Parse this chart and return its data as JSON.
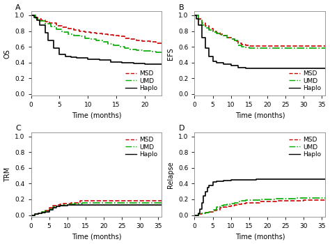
{
  "panel_A": {
    "title": "A",
    "ylabel": "OS",
    "xlabel": "Time (months)",
    "xlim": [
      0,
      23
    ],
    "ylim": [
      -0.02,
      1.05
    ],
    "xticks": [
      0,
      5,
      10,
      15,
      20
    ],
    "yticks": [
      0.0,
      0.2,
      0.4,
      0.6,
      0.8,
      1.0
    ],
    "legend_loc": "lower right",
    "legend_bbox": null,
    "MSD": {
      "x": [
        0,
        0.3,
        0.8,
        1.2,
        1.8,
        2.5,
        3.2,
        4.5,
        5.5,
        6.5,
        7.5,
        8.5,
        9.5,
        10.5,
        11.5,
        12.5,
        13.5,
        14.5,
        15.5,
        16.5,
        17.5,
        18.5,
        19.5,
        21,
        22,
        23
      ],
      "y": [
        1.0,
        1.0,
        0.97,
        0.96,
        0.94,
        0.92,
        0.9,
        0.87,
        0.85,
        0.83,
        0.81,
        0.8,
        0.79,
        0.78,
        0.77,
        0.76,
        0.75,
        0.74,
        0.73,
        0.71,
        0.7,
        0.68,
        0.67,
        0.66,
        0.65,
        0.65
      ],
      "color": "#cc0000",
      "linestyle": "dashed",
      "linewidth": 1.2
    },
    "UMD": {
      "x": [
        0,
        0.3,
        0.8,
        1.5,
        2.5,
        3.5,
        4.5,
        5.5,
        6.5,
        7.5,
        8.5,
        9.5,
        10.5,
        11.5,
        12.5,
        13.5,
        14.5,
        15.5,
        16.5,
        17.5,
        18.5,
        19.5,
        21,
        22,
        23
      ],
      "y": [
        1.0,
        1.0,
        0.96,
        0.93,
        0.89,
        0.86,
        0.82,
        0.79,
        0.76,
        0.74,
        0.73,
        0.71,
        0.7,
        0.68,
        0.66,
        0.64,
        0.62,
        0.6,
        0.58,
        0.57,
        0.56,
        0.55,
        0.54,
        0.53,
        0.53
      ],
      "color": "#00aa00",
      "linestyle": "dashdot",
      "linewidth": 1.2
    },
    "Haplo": {
      "x": [
        0,
        0.5,
        1.0,
        1.5,
        2.5,
        3.0,
        4.0,
        5.0,
        6.0,
        7.0,
        8.0,
        10.0,
        12.0,
        14.0,
        16.0,
        18.0,
        20.0,
        22.0,
        23.0
      ],
      "y": [
        1.0,
        0.97,
        0.94,
        0.88,
        0.78,
        0.68,
        0.58,
        0.5,
        0.48,
        0.47,
        0.46,
        0.44,
        0.43,
        0.41,
        0.4,
        0.39,
        0.38,
        0.38,
        0.38
      ],
      "color": "#000000",
      "linestyle": "solid",
      "linewidth": 1.2
    }
  },
  "panel_B": {
    "title": "B",
    "ylabel": "EFS",
    "xlabel": "Time (months)",
    "xlim": [
      0,
      36
    ],
    "ylim": [
      -0.02,
      1.05
    ],
    "xticks": [
      0,
      5,
      10,
      15,
      20,
      25,
      30,
      35
    ],
    "yticks": [
      0.0,
      0.2,
      0.4,
      0.6,
      0.8,
      1.0
    ],
    "legend_loc": "lower right",
    "legend_bbox": null,
    "MSD": {
      "x": [
        0,
        0.5,
        1.0,
        2.0,
        3.0,
        4.0,
        5.0,
        6.0,
        7.0,
        8.0,
        9.0,
        10.0,
        11.0,
        12.0,
        13.0,
        14.0,
        15.0,
        17.0,
        20.0,
        25.0,
        30.0,
        36.0
      ],
      "y": [
        1.0,
        1.0,
        0.96,
        0.9,
        0.87,
        0.83,
        0.8,
        0.78,
        0.76,
        0.74,
        0.72,
        0.7,
        0.67,
        0.65,
        0.63,
        0.62,
        0.61,
        0.61,
        0.61,
        0.61,
        0.61,
        0.61
      ],
      "color": "#cc0000",
      "linestyle": "dashed",
      "linewidth": 1.2
    },
    "UMD": {
      "x": [
        0,
        0.5,
        1.0,
        2.0,
        3.0,
        4.0,
        5.0,
        6.0,
        7.0,
        8.0,
        9.0,
        10.0,
        11.0,
        12.0,
        13.0,
        14.0,
        15.0,
        17.0,
        20.0,
        25.0,
        30.0,
        36.0
      ],
      "y": [
        1.0,
        1.0,
        0.95,
        0.88,
        0.84,
        0.81,
        0.79,
        0.77,
        0.75,
        0.74,
        0.72,
        0.7,
        0.68,
        0.62,
        0.6,
        0.59,
        0.58,
        0.58,
        0.58,
        0.58,
        0.58,
        0.58
      ],
      "color": "#00aa00",
      "linestyle": "dashdot",
      "linewidth": 1.2
    },
    "Haplo": {
      "x": [
        0,
        0.5,
        1.0,
        2.0,
        3.0,
        4.0,
        5.0,
        6.0,
        8.0,
        10.0,
        12.0,
        14.0,
        16.0,
        20.0,
        25.0,
        30.0,
        36.0
      ],
      "y": [
        1.0,
        0.96,
        0.88,
        0.72,
        0.58,
        0.48,
        0.42,
        0.4,
        0.38,
        0.36,
        0.34,
        0.33,
        0.33,
        0.33,
        0.33,
        0.33,
        0.33
      ],
      "color": "#000000",
      "linestyle": "solid",
      "linewidth": 1.2
    }
  },
  "panel_C": {
    "title": "C",
    "ylabel": "TRM",
    "xlabel": "Time (months)",
    "xlim": [
      0,
      36
    ],
    "ylim": [
      -0.02,
      1.05
    ],
    "xticks": [
      0,
      5,
      10,
      15,
      20,
      25,
      30,
      35
    ],
    "yticks": [
      0.0,
      0.2,
      0.4,
      0.6,
      0.8,
      1.0
    ],
    "legend_loc": "upper right",
    "legend_bbox": null,
    "MSD": {
      "x": [
        0,
        1.0,
        2.0,
        3.0,
        4.0,
        5.0,
        6.0,
        7.0,
        8.0,
        9.0,
        10.0,
        11.0,
        12.0,
        13.5,
        14.5,
        15.0,
        20.0,
        25.0,
        30.0,
        36.0
      ],
      "y": [
        0.0,
        0.01,
        0.02,
        0.04,
        0.06,
        0.09,
        0.12,
        0.13,
        0.14,
        0.15,
        0.15,
        0.16,
        0.16,
        0.18,
        0.18,
        0.18,
        0.18,
        0.18,
        0.18,
        0.18
      ],
      "color": "#cc0000",
      "linestyle": "dashed",
      "linewidth": 1.2
    },
    "UMD": {
      "x": [
        0,
        1.0,
        2.0,
        3.0,
        4.0,
        5.0,
        6.0,
        7.0,
        8.0,
        9.0,
        10.0,
        11.0,
        12.0,
        13.0,
        14.0,
        15.0,
        20.0,
        25.0,
        30.0,
        36.0
      ],
      "y": [
        0.0,
        0.01,
        0.02,
        0.04,
        0.06,
        0.08,
        0.1,
        0.11,
        0.12,
        0.13,
        0.14,
        0.14,
        0.15,
        0.15,
        0.16,
        0.16,
        0.16,
        0.16,
        0.16,
        0.16
      ],
      "color": "#00aa00",
      "linestyle": "dashdot",
      "linewidth": 1.2
    },
    "Haplo": {
      "x": [
        0,
        1.0,
        2.0,
        3.0,
        4.0,
        5.0,
        6.0,
        7.0,
        8.0,
        9.0,
        10.0,
        12.0,
        14.0,
        15.0,
        20.0,
        25.0,
        30.0,
        36.0
      ],
      "y": [
        0.0,
        0.01,
        0.02,
        0.03,
        0.04,
        0.07,
        0.09,
        0.11,
        0.12,
        0.12,
        0.13,
        0.13,
        0.13,
        0.13,
        0.13,
        0.13,
        0.13,
        0.13
      ],
      "color": "#000000",
      "linestyle": "solid",
      "linewidth": 1.2
    }
  },
  "panel_D": {
    "title": "D",
    "ylabel": "Relapse",
    "xlabel": "Time (months)",
    "xlim": [
      0,
      36
    ],
    "ylim": [
      -0.02,
      1.05
    ],
    "xticks": [
      0,
      5,
      10,
      15,
      20,
      25,
      30,
      35
    ],
    "yticks": [
      0.0,
      0.2,
      0.4,
      0.6,
      0.8,
      1.0
    ],
    "legend_loc": "upper right",
    "legend_bbox": null,
    "MSD": {
      "x": [
        0,
        1.0,
        2.0,
        3.0,
        4.0,
        5.0,
        6.0,
        7.0,
        8.0,
        9.0,
        10.0,
        11.0,
        12.0,
        13.0,
        14.0,
        15.0,
        18.0,
        20.0,
        23.0,
        26.0,
        30.0,
        33.0,
        36.0
      ],
      "y": [
        0.0,
        0.01,
        0.02,
        0.03,
        0.04,
        0.06,
        0.07,
        0.09,
        0.1,
        0.11,
        0.12,
        0.13,
        0.14,
        0.15,
        0.16,
        0.16,
        0.17,
        0.17,
        0.18,
        0.18,
        0.19,
        0.19,
        0.19
      ],
      "color": "#cc0000",
      "linestyle": "dashed",
      "linewidth": 1.2
    },
    "UMD": {
      "x": [
        0,
        1.0,
        2.0,
        3.0,
        4.0,
        5.0,
        6.0,
        7.0,
        8.0,
        9.0,
        10.0,
        11.0,
        12.0,
        13.0,
        14.0,
        15.0,
        18.0,
        20.0,
        22.0,
        25.0,
        28.0,
        32.0,
        36.0
      ],
      "y": [
        0.0,
        0.01,
        0.02,
        0.03,
        0.04,
        0.07,
        0.1,
        0.12,
        0.13,
        0.14,
        0.15,
        0.16,
        0.17,
        0.18,
        0.19,
        0.19,
        0.2,
        0.2,
        0.21,
        0.21,
        0.22,
        0.22,
        0.22
      ],
      "color": "#00aa00",
      "linestyle": "dashdot",
      "linewidth": 1.2
    },
    "Haplo": {
      "x": [
        0,
        0.5,
        1.0,
        1.5,
        2.0,
        2.5,
        3.0,
        3.5,
        4.0,
        5.0,
        6.0,
        8.0,
        10.0,
        12.0,
        14.0,
        17.0,
        19.0,
        20.0,
        25.0,
        30.0,
        36.0
      ],
      "y": [
        0.0,
        0.0,
        0.02,
        0.08,
        0.16,
        0.24,
        0.3,
        0.35,
        0.38,
        0.42,
        0.43,
        0.44,
        0.45,
        0.45,
        0.45,
        0.46,
        0.46,
        0.46,
        0.46,
        0.46,
        0.46
      ],
      "color": "#000000",
      "linestyle": "solid",
      "linewidth": 1.2
    }
  },
  "legend": {
    "MSD": {
      "color": "#cc0000",
      "linestyle": "dashed"
    },
    "UMD": {
      "color": "#00aa00",
      "linestyle": "dashdot"
    },
    "Haplo": {
      "color": "#000000",
      "linestyle": "solid"
    }
  },
  "bg_color": "#ffffff",
  "plot_bg": "#ffffff",
  "fontsize": 7,
  "label_fontsize": 7,
  "tick_fontsize": 6.5
}
